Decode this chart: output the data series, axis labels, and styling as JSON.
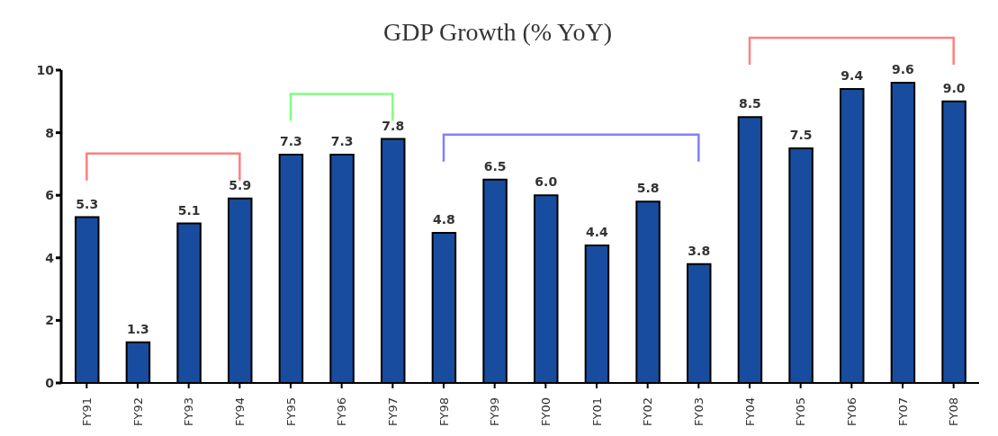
{
  "chart_data": {
    "type": "bar",
    "title": "GDP Growth (% YoY)",
    "categories": [
      "FY91",
      "FY92",
      "FY93",
      "FY94",
      "FY95",
      "FY96",
      "FY97",
      "FY98",
      "FY99",
      "FY00",
      "FY01",
      "FY02",
      "FY03",
      "FY04",
      "FY05",
      "FY06",
      "FY07",
      "FY08"
    ],
    "values": [
      5.3,
      1.3,
      5.1,
      5.9,
      7.3,
      7.3,
      7.8,
      4.8,
      6.5,
      6.0,
      4.4,
      5.8,
      3.8,
      8.5,
      7.5,
      9.4,
      9.6,
      9.0
    ],
    "value_labels": [
      "5.3",
      "1.3",
      "5.1",
      "5.9",
      "7.3",
      "7.3",
      "7.8",
      "4.8",
      "6.5",
      "6.0",
      "4.4",
      "5.8",
      "3.8",
      "8.5",
      "7.5",
      "9.4",
      "9.6",
      "9.0"
    ],
    "color": "#184c9f",
    "ylim": [
      0,
      10
    ],
    "yticks": [
      0,
      2,
      4,
      6,
      8,
      10
    ]
  }
}
